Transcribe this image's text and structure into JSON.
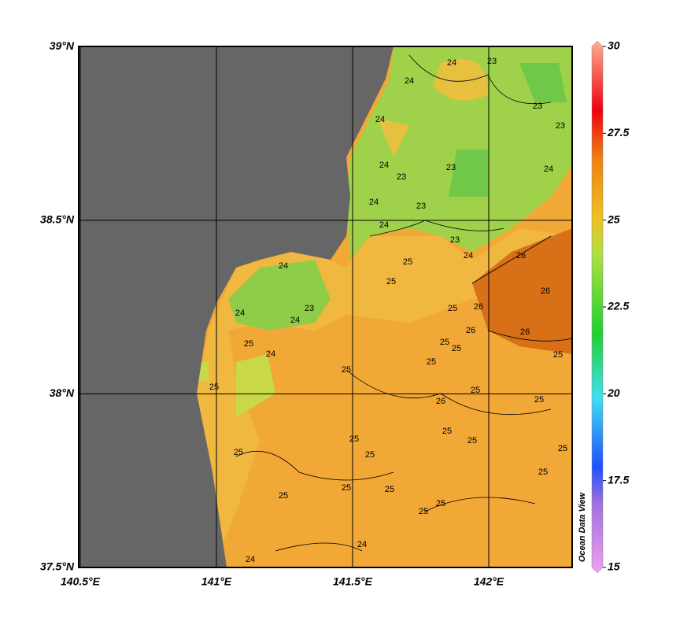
{
  "map": {
    "lon_ticks": [
      {
        "value": 140.5,
        "label": "140.5°E"
      },
      {
        "value": 141,
        "label": "141°E"
      },
      {
        "value": 141.5,
        "label": "141.5°E"
      },
      {
        "value": 142,
        "label": "142°E"
      }
    ],
    "lat_ticks": [
      {
        "value": 39,
        "label": "39°N"
      },
      {
        "value": 38.5,
        "label": "38.5°N"
      },
      {
        "value": 38,
        "label": "38°N"
      },
      {
        "value": 37.5,
        "label": "37.5°N"
      }
    ],
    "contour_labels": [
      "24",
      "23",
      "24",
      "23",
      "23",
      "24",
      "24",
      "23",
      "23",
      "23",
      "24",
      "24",
      "24",
      "24",
      "23",
      "25",
      "25",
      "25",
      "26",
      "26",
      "26",
      "26",
      "26",
      "25",
      "25",
      "25",
      "25",
      "25",
      "26",
      "25",
      "25",
      "25",
      "25",
      "25",
      "25",
      "25",
      "25",
      "25",
      "25",
      "25",
      "25",
      "25",
      "25",
      "24",
      "24",
      "24",
      "25",
      "24",
      "23",
      "24",
      "25",
      "24"
    ]
  },
  "colorbar": {
    "lim": [
      15,
      30
    ],
    "ticks": [
      30,
      27.5,
      25,
      22.5,
      20,
      17.5,
      15
    ],
    "watermark": "Ocean Data View"
  }
}
